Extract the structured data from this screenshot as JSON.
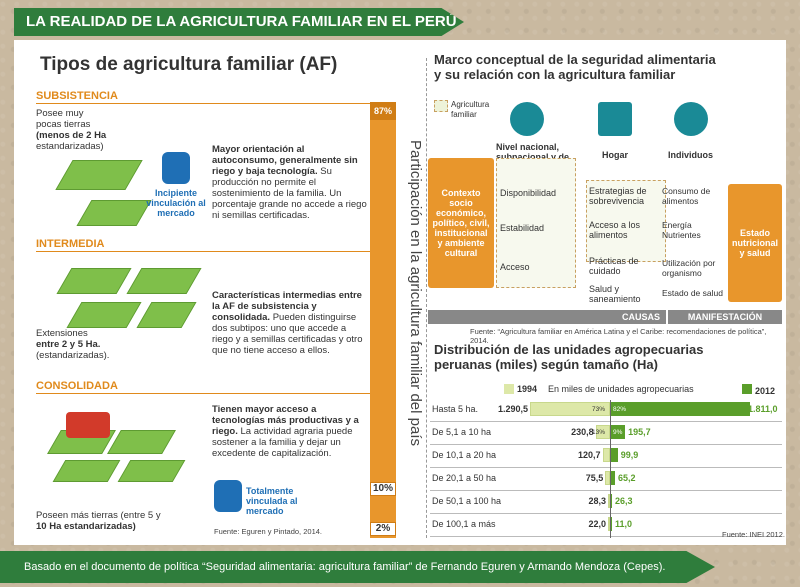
{
  "header": "LA REALIDAD DE LA AGRICULTURA FAMILIAR EN EL PERÚ",
  "footer": "Basado en el documento de política “Seguridad alimentaria: agricultura familiar” de Fernando Eguren y Armando Mendoza (Cepes).",
  "left": {
    "title": "Tipos de agricultura familiar (AF)",
    "subsistencia": {
      "label": "SUBSISTENCIA",
      "note_a": "Posee muy",
      "note_b": "pocas tierras",
      "note_c": "(menos de 2 Ha",
      "note_d": "estandarizadas)",
      "desc_bold": "Mayor orientación al autoconsumo, generalmente sin riego y baja tecnología.",
      "desc": "Su producción no permite el sostenimiento de la familia. Un porcentaje grande no accede a riego ni semillas certificadas.",
      "bag_label": "Incipiente vinculación al mercado"
    },
    "intermedia": {
      "label": "INTERMEDIA",
      "note_a": "Extensiones",
      "note_b": "entre 2 y 5 Ha.",
      "note_c": "(estandarizadas).",
      "desc_bold": "Características intermedias entre la AF de subsistencia y consolidada.",
      "desc": "Pueden distinguirse dos subtipos: uno que accede a riego y a semillas certificadas y otro que no tiene acceso a ellos."
    },
    "consolidada": {
      "label": "CONSOLIDADA",
      "note_a": "Poseen más tierras (entre 5 y",
      "note_b": "10 Ha estandarizadas)",
      "desc_bold": "Tienen mayor acceso a tecnologías más productivas y a riego.",
      "desc": "La actividad agraria puede sostener a la familia y dejar un excedente de capitalización.",
      "bag_label": "Totalmente vinculada al mercado"
    },
    "bar_title": "Participación en la agricultura familiar del país",
    "pct_87": "87%",
    "pct_10": "10%",
    "pct_2": "2%",
    "source": "Fuente: Eguren y Pintado, 2014."
  },
  "framework": {
    "title_a": "Marco conceptual de la seguridad alimentaria",
    "title_b": "y su relación con la agricultura familiar",
    "legend": "Agricultura familiar",
    "level_national": "Nivel nacional, subnacional y de comunidad",
    "level_home": "Hogar",
    "level_individual": "Individuos",
    "context": "Contexto socio económico, político, civil, institucional y ambiente cultural",
    "disponibilidad": "Disponibilidad",
    "estabilidad": "Estabilidad",
    "acceso": "Acceso",
    "estrategias": "Estrategias de sobrevivencia",
    "acceso_alimentos": "Acceso a los alimentos",
    "practicas": "Prácticas de cuidado",
    "salud": "Salud y saneamiento",
    "consumo": "Consumo de alimentos",
    "energia": "Energía Nutrientes",
    "utilizacion": "Utilización por organismo",
    "estado_salud": "Estado de salud",
    "estado_nutricional": "Estado nutricional y salud",
    "causas": "CAUSAS",
    "manifestacion": "MANIFESTACIÓN",
    "source": "Fuente: “Agricultura familiar en América Latina y el Caribe: recomendaciones de política”, 2014."
  },
  "distribution": {
    "title_a": "Distribución de las unidades agropecuarias",
    "title_b": "peruanas (miles) según tamaño (Ha)",
    "legend_1994": "1994",
    "legend_2012": "2012",
    "units": "En miles de unidades agropecuarias",
    "source": "Fuente: INEI 2012.",
    "colors": {
      "y1994": "#dde8a8",
      "y2012": "#5a9e2a"
    }
  },
  "chart_data": {
    "type": "bar",
    "categories": [
      "Hasta 5 ha.",
      "De 5,1 a 10 ha",
      "De 10,1 a 20 ha",
      "De 20,1 a 50 ha",
      "De 50,1 a 100 ha",
      "De 100,1 a más"
    ],
    "series": [
      {
        "name": "1994",
        "values": [
          1290.5,
          230.8,
          120.7,
          75.5,
          28.3,
          22.0
        ],
        "labels": [
          "1.290,5",
          "230,8",
          "120,7",
          "75,5",
          "28,3",
          "22,0"
        ],
        "pct": [
          "73%",
          "13%",
          "",
          "",
          "",
          ""
        ]
      },
      {
        "name": "2012",
        "values": [
          1811.0,
          195.7,
          99.9,
          65.2,
          26.3,
          11.0
        ],
        "labels": [
          "1.811,0",
          "195,7",
          "99,9",
          "65,2",
          "26,3",
          "11,0"
        ],
        "pct": [
          "82%",
          "9%",
          "",
          "",
          "",
          ""
        ]
      }
    ],
    "ylabel": "En miles de unidades agropecuarias"
  }
}
